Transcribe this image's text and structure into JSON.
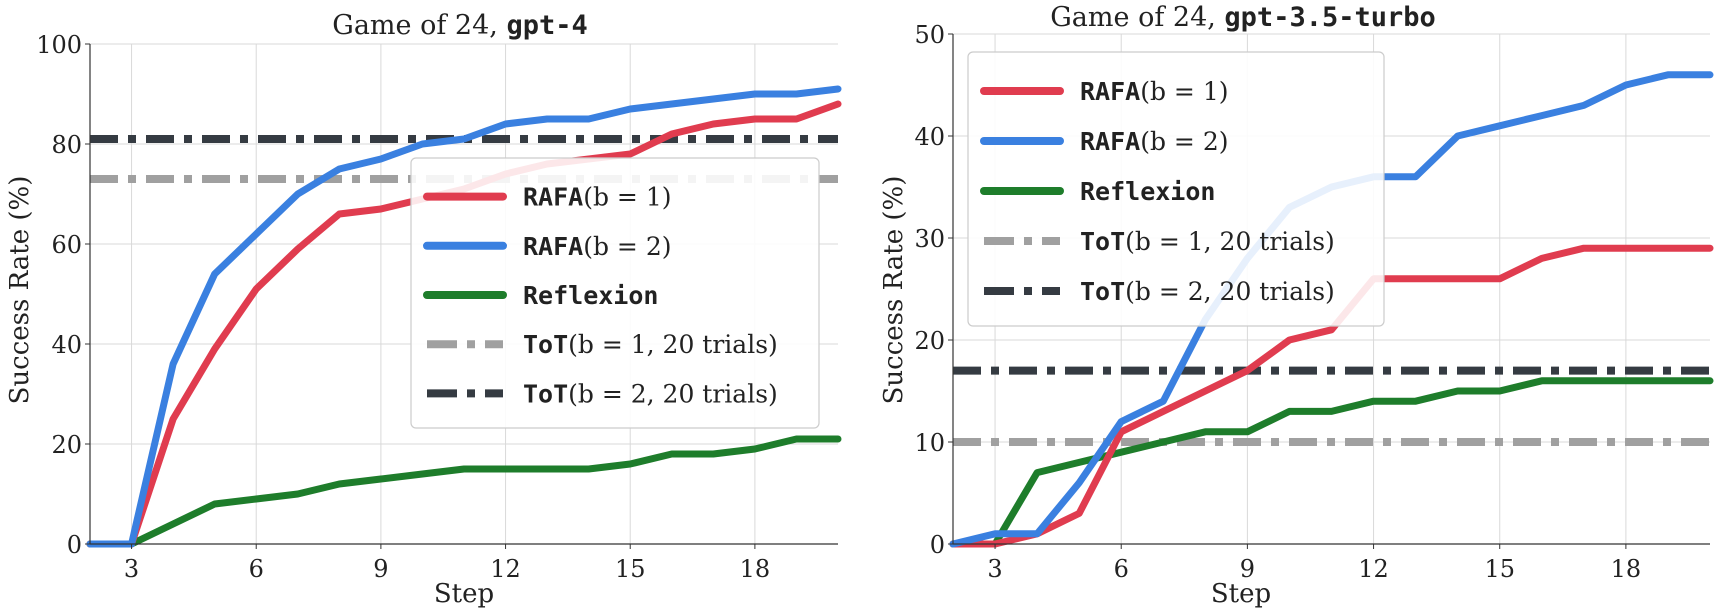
{
  "chart_data": [
    {
      "type": "line",
      "title_prefix": "Game of 24, ",
      "title_model": "gpt-4",
      "xlabel": "Step",
      "ylabel": "Success Rate (%)",
      "xlim": [
        2,
        20
      ],
      "ylim": [
        0,
        100
      ],
      "xticks": [
        3,
        6,
        9,
        12,
        15,
        18
      ],
      "yticks": [
        0,
        20,
        40,
        60,
        80,
        100
      ],
      "grid": true,
      "legend_position": "center-right",
      "series": [
        {
          "name": "RAFA(b = 1)",
          "legend_mono": "RAFA",
          "legend_math": "(b = 1)",
          "color": "#e03c4f",
          "style": "solid",
          "x": [
            2,
            3,
            4,
            5,
            6,
            7,
            8,
            9,
            10,
            11,
            12,
            13,
            14,
            15,
            16,
            17,
            18,
            19,
            20
          ],
          "y": [
            0,
            0,
            25,
            39,
            51,
            59,
            66,
            67,
            69,
            71,
            74,
            76,
            77,
            78,
            82,
            84,
            85,
            85,
            88
          ]
        },
        {
          "name": "RAFA(b = 2)",
          "legend_mono": "RAFA",
          "legend_math": "(b = 2)",
          "color": "#3a80e0",
          "style": "solid",
          "x": [
            2,
            3,
            4,
            5,
            6,
            7,
            8,
            9,
            10,
            11,
            12,
            13,
            14,
            15,
            16,
            17,
            18,
            19,
            20
          ],
          "y": [
            0,
            0,
            36,
            54,
            62,
            70,
            75,
            77,
            80,
            81,
            84,
            85,
            85,
            87,
            88,
            89,
            90,
            90,
            91
          ]
        },
        {
          "name": "Reflexion",
          "legend_mono": "Reflexion",
          "legend_math": "",
          "color": "#1e7d2b",
          "style": "solid",
          "x": [
            2,
            3,
            4,
            5,
            6,
            7,
            8,
            9,
            10,
            11,
            12,
            13,
            14,
            15,
            16,
            17,
            18,
            19,
            20
          ],
          "y": [
            0,
            0,
            4,
            8,
            9,
            10,
            12,
            13,
            14,
            15,
            15,
            15,
            15,
            16,
            18,
            18,
            19,
            21,
            21
          ]
        },
        {
          "name": "ToT(b = 1, 20 trials)",
          "legend_mono": "ToT",
          "legend_math": "(b = 1, 20 trials)",
          "color": "#a0a0a0",
          "style": "dashdot",
          "x": [
            2,
            20
          ],
          "y": [
            73,
            73
          ]
        },
        {
          "name": "ToT(b = 2, 20 trials)",
          "legend_mono": "ToT",
          "legend_math": "(b = 2, 20 trials)",
          "color": "#353b42",
          "style": "dashdot",
          "x": [
            2,
            20
          ],
          "y": [
            81,
            81
          ]
        }
      ]
    },
    {
      "type": "line",
      "title_prefix": "Game of 24, ",
      "title_model": "gpt-3.5-turbo",
      "xlabel": "Step",
      "ylabel": "Success Rate (%)",
      "xlim": [
        2,
        20
      ],
      "ylim": [
        0,
        50
      ],
      "xticks": [
        3,
        6,
        9,
        12,
        15,
        18
      ],
      "yticks": [
        0,
        10,
        20,
        30,
        40,
        50
      ],
      "grid": true,
      "legend_position": "upper-left",
      "series": [
        {
          "name": "RAFA(b = 1)",
          "legend_mono": "RAFA",
          "legend_math": "(b = 1)",
          "color": "#e03c4f",
          "style": "solid",
          "x": [
            2,
            3,
            4,
            5,
            6,
            7,
            8,
            9,
            10,
            11,
            12,
            13,
            14,
            15,
            16,
            17,
            18,
            19,
            20
          ],
          "y": [
            0,
            0,
            1,
            3,
            11,
            13,
            15,
            17,
            20,
            21,
            26,
            26,
            26,
            26,
            28,
            29,
            29,
            29,
            29
          ]
        },
        {
          "name": "RAFA(b = 2)",
          "legend_mono": "RAFA",
          "legend_math": "(b = 2)",
          "color": "#3a80e0",
          "style": "solid",
          "x": [
            2,
            3,
            4,
            5,
            6,
            7,
            8,
            9,
            10,
            11,
            12,
            13,
            14,
            15,
            16,
            17,
            18,
            19,
            20
          ],
          "y": [
            0,
            1,
            1,
            6,
            12,
            14,
            22,
            28,
            33,
            35,
            36,
            36,
            40,
            41,
            42,
            43,
            45,
            46,
            46
          ]
        },
        {
          "name": "Reflexion",
          "legend_mono": "Reflexion",
          "legend_math": "",
          "color": "#1e7d2b",
          "style": "solid",
          "x": [
            2,
            3,
            4,
            5,
            6,
            7,
            8,
            9,
            10,
            11,
            12,
            13,
            14,
            15,
            16,
            17,
            18,
            19,
            20
          ],
          "y": [
            0,
            0,
            7,
            8,
            9,
            10,
            11,
            11,
            13,
            13,
            14,
            14,
            15,
            15,
            16,
            16,
            16,
            16,
            16
          ]
        },
        {
          "name": "ToT(b = 1, 20 trials)",
          "legend_mono": "ToT",
          "legend_math": "(b = 1, 20 trials)",
          "color": "#a0a0a0",
          "style": "dashdot",
          "x": [
            2,
            20
          ],
          "y": [
            10,
            10
          ]
        },
        {
          "name": "ToT(b = 2, 20 trials)",
          "legend_mono": "ToT",
          "legend_math": "(b = 2, 20 trials)",
          "color": "#353b42",
          "style": "dashdot",
          "x": [
            2,
            20
          ],
          "y": [
            17,
            17
          ]
        }
      ]
    }
  ]
}
